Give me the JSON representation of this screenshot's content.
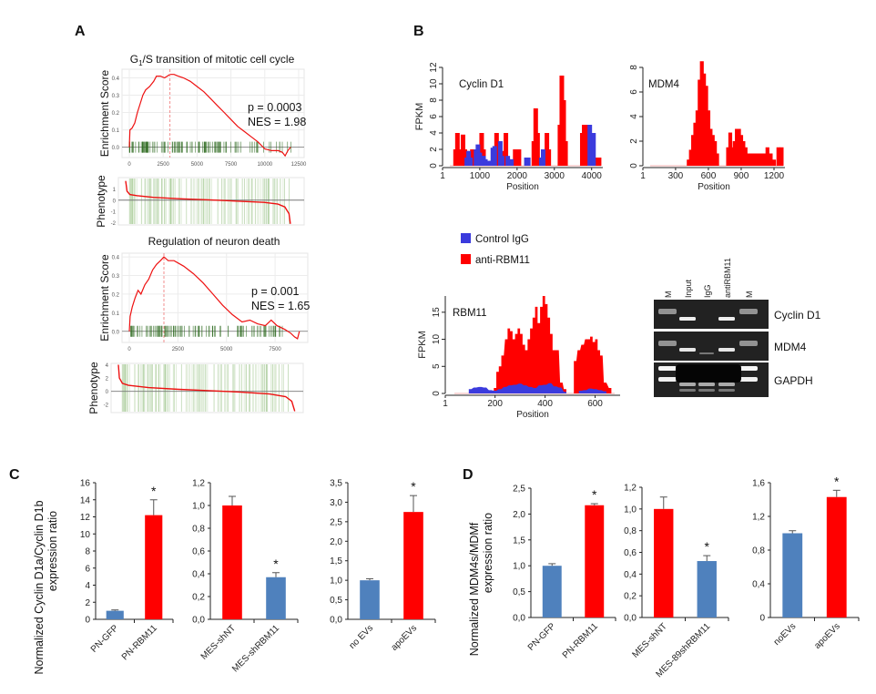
{
  "panel_letters": {
    "A": "A",
    "B": "B",
    "C": "C",
    "D": "D"
  },
  "colors": {
    "gsea_line": "#ee1111",
    "gsea_hits": "#2d6a1f",
    "gsea_hit_bg": "#b8d4a8",
    "control_igg": "#3b3bdd",
    "anti_rbm11": "#ff0000",
    "bar_blue": "#4f81bd",
    "bar_red": "#ff0000",
    "axis": "#222222",
    "gel_bg": "#1a1a1a",
    "gel_band": "#e8e8e8"
  },
  "chart_data": [
    {
      "id": "A1-es",
      "type": "line",
      "title": "G1/S transition of mitotic cell cycle",
      "title_main": "G",
      "title_sub": "1",
      "title_rest": "/S transition of mitotic cell cycle",
      "ylabel": "Enrichment Score",
      "xlim": [
        0,
        12500
      ],
      "ylim": [
        -0.06,
        0.45
      ],
      "xticks": [
        "0",
        "2500",
        "5000",
        "7500",
        "10000",
        "12500"
      ],
      "xtick_values": [
        0,
        2500,
        5000,
        7500,
        10000,
        12500
      ],
      "yticks": [
        "0.0",
        "0.1",
        "0.2",
        "0.3",
        "0.4"
      ],
      "ytick_values": [
        0.0,
        0.1,
        0.2,
        0.3,
        0.4
      ],
      "annotations": [
        "p = 0.0003",
        "NES = 1.98"
      ],
      "peak_x": 3000,
      "x": [
        0,
        50,
        200,
        400,
        600,
        800,
        1000,
        1200,
        1500,
        1800,
        2000,
        2300,
        2600,
        2800,
        3000,
        3300,
        3600,
        4000,
        4500,
        5000,
        5500,
        6000,
        6500,
        7000,
        7500,
        8000,
        8500,
        9000,
        9500,
        10000,
        10500,
        11000,
        11300,
        11500,
        11700,
        11900
      ],
      "y": [
        0.0,
        0.1,
        0.11,
        0.14,
        0.2,
        0.25,
        0.3,
        0.33,
        0.35,
        0.38,
        0.41,
        0.41,
        0.4,
        0.41,
        0.42,
        0.42,
        0.41,
        0.4,
        0.38,
        0.35,
        0.32,
        0.28,
        0.24,
        0.2,
        0.16,
        0.12,
        0.09,
        0.06,
        0.03,
        -0.01,
        -0.02,
        -0.02,
        -0.03,
        -0.05,
        -0.02,
        0.0
      ],
      "hits_n": 120,
      "hits_max": 12000
    },
    {
      "id": "A1-pheno",
      "type": "line",
      "ylabel": "Phenotype",
      "ylim": [
        -2.2,
        2
      ],
      "yticks": [
        "1",
        "0",
        "-1",
        "-2"
      ],
      "ytick_values": [
        1,
        0,
        -1,
        -2
      ],
      "xlim": [
        0,
        12500
      ],
      "x": [
        0,
        100,
        300,
        800,
        2000,
        4000,
        6000,
        8000,
        10000,
        11000,
        11500,
        11800,
        11900
      ],
      "y": [
        1.7,
        0.8,
        0.5,
        0.4,
        0.25,
        0.12,
        0.03,
        -0.08,
        -0.2,
        -0.35,
        -0.6,
        -1.2,
        -2.1
      ]
    },
    {
      "id": "A2-es",
      "type": "line",
      "title": "Regulation of neuron death",
      "ylabel": "Enrichment Score",
      "xlim": [
        0,
        8900
      ],
      "ylim": [
        -0.06,
        0.42
      ],
      "xticks": [
        "0",
        "2500",
        "5000",
        "7500"
      ],
      "xtick_values": [
        0,
        2500,
        5000,
        7500
      ],
      "yticks": [
        "0.0",
        "0.1",
        "0.2",
        "0.3",
        "0.4"
      ],
      "ytick_values": [
        0.0,
        0.1,
        0.2,
        0.3,
        0.4
      ],
      "annotations": [
        "p = 0.001",
        "NES = 1.65"
      ],
      "peak_x": 1780,
      "x": [
        0,
        40,
        150,
        300,
        450,
        600,
        800,
        1000,
        1200,
        1400,
        1600,
        1780,
        2000,
        2300,
        2800,
        3300,
        3800,
        4300,
        4800,
        5300,
        5800,
        6200,
        6600,
        7000,
        7300,
        7600,
        8000,
        8300,
        8500,
        8650,
        8750
      ],
      "y": [
        0.0,
        0.08,
        0.13,
        0.18,
        0.22,
        0.2,
        0.25,
        0.28,
        0.33,
        0.36,
        0.38,
        0.4,
        0.38,
        0.38,
        0.35,
        0.31,
        0.26,
        0.2,
        0.14,
        0.09,
        0.05,
        0.06,
        0.04,
        0.03,
        0.06,
        0.03,
        0.01,
        -0.01,
        -0.03,
        -0.04,
        0.0
      ],
      "hits_n": 110,
      "hits_max": 8000
    },
    {
      "id": "A2-pheno",
      "type": "line",
      "ylabel": "Phenotype",
      "ylim": [
        -3.2,
        4.2
      ],
      "yticks": [
        "4",
        "2",
        "0",
        "-2"
      ],
      "ytick_values": [
        4,
        2,
        0,
        -2
      ],
      "xlim": [
        0,
        8900
      ],
      "x": [
        0,
        50,
        200,
        500,
        1500,
        3000,
        4500,
        6000,
        7500,
        8300,
        8600,
        8750
      ],
      "y": [
        4.0,
        2.0,
        1.2,
        0.9,
        0.55,
        0.3,
        0.1,
        -0.1,
        -0.4,
        -0.8,
        -1.5,
        -3.0
      ]
    },
    {
      "id": "B-cyclinD1",
      "type": "bar",
      "title": "Cyclin D1",
      "ylabel": "FPKM",
      "xlabel": "Position",
      "xlim": [
        1,
        4300
      ],
      "ylim": [
        0,
        12
      ],
      "xticks": [
        "1",
        "1000",
        "2000",
        "3000",
        "4000"
      ],
      "xtick_values": [
        1,
        1000,
        2000,
        3000,
        4000
      ],
      "yticks": [
        "0",
        "2",
        "4",
        "6",
        "8",
        "10",
        "12"
      ],
      "ytick_values": [
        0,
        2,
        4,
        6,
        8,
        10,
        12
      ],
      "series": [
        {
          "name": "anti-RBM11",
          "x": [
            350,
            400,
            450,
            500,
            550,
            600,
            650,
            800,
            850,
            1050,
            1100,
            1450,
            1500,
            1650,
            1700,
            1950,
            2000,
            2050,
            2450,
            2500,
            2550,
            2600,
            2800,
            2850,
            3150,
            3200,
            3250,
            3300,
            3750,
            3800,
            3850,
            4150,
            4200
          ],
          "values": [
            2,
            4,
            2,
            2,
            3.8,
            2,
            1.8,
            2,
            1.8,
            4,
            2,
            4,
            2,
            1.8,
            4,
            2,
            2,
            2,
            3,
            7,
            4,
            1,
            4,
            2,
            5,
            11,
            8,
            3,
            4,
            5,
            5,
            1,
            1
          ]
        },
        {
          "name": "Control IgG",
          "x": [
            650,
            700,
            750,
            900,
            950,
            1000,
            1050,
            1100,
            1150,
            1250,
            1300,
            1350,
            1400,
            1550,
            1600,
            1750,
            1850,
            2250,
            2300,
            2650,
            2700,
            3950,
            4000,
            4050
          ],
          "values": [
            1,
            1.8,
            1,
            2,
            2.6,
            1.6,
            1.2,
            1.2,
            0.8,
            0.6,
            0.6,
            2.2,
            2.4,
            3,
            1.2,
            1.2,
            0.8,
            1,
            1,
            1,
            2,
            5,
            3,
            4
          ]
        }
      ]
    },
    {
      "id": "B-mdm4",
      "type": "bar",
      "title": "MDM4",
      "ylabel": "",
      "xlabel": "Position",
      "xlim": [
        1,
        1300
      ],
      "ylim": [
        0,
        8
      ],
      "xticks": [
        "1",
        "300",
        "600",
        "900",
        "1200"
      ],
      "xtick_values": [
        1,
        300,
        600,
        900,
        1200
      ],
      "yticks": [
        "0",
        "2",
        "4",
        "6",
        "8"
      ],
      "ytick_values": [
        0,
        2,
        4,
        6,
        8
      ],
      "series": [
        {
          "name": "anti-RBM11",
          "x": [
            420,
            440,
            460,
            480,
            500,
            520,
            540,
            560,
            580,
            600,
            620,
            640,
            660,
            680,
            780,
            800,
            820,
            840,
            860,
            880,
            900,
            920,
            940,
            960,
            990,
            1020,
            1050,
            1080,
            1110,
            1140,
            1170,
            1200,
            1240,
            1270
          ],
          "values": [
            0.5,
            1.3,
            2.5,
            3.5,
            4.5,
            7,
            8.5,
            7.5,
            6.5,
            4.5,
            3,
            2.5,
            2,
            1,
            1.5,
            2.7,
            1.5,
            2,
            3,
            3,
            2.5,
            2,
            1.5,
            1,
            1,
            1,
            1,
            1,
            1,
            1.5,
            1,
            0.5,
            1.5,
            1.5
          ]
        }
      ]
    },
    {
      "id": "B-rbm11",
      "type": "area",
      "title": "RBM11",
      "ylabel": "FPKM",
      "xlabel": "Position",
      "xlim": [
        1,
        700
      ],
      "ylim": [
        0,
        18
      ],
      "xticks": [
        "1",
        "200",
        "400",
        "600"
      ],
      "xtick_values": [
        1,
        200,
        400,
        600
      ],
      "yticks": [
        "0",
        "5",
        "10",
        "15"
      ],
      "ytick_values": [
        0,
        5,
        10,
        15
      ],
      "legend": [
        "Control IgG",
        "anti-RBM11"
      ],
      "legend_position": "top-left",
      "series": [
        {
          "name": "anti-RBM11",
          "x": [
            200,
            210,
            220,
            230,
            245,
            255,
            265,
            275,
            285,
            295,
            305,
            315,
            325,
            335,
            345,
            355,
            365,
            375,
            385,
            395,
            405,
            415,
            425,
            435,
            450,
            465,
            480,
            520,
            535,
            550,
            565,
            575,
            585,
            595,
            605,
            615,
            625,
            640,
            660
          ],
          "values": [
            1,
            4,
            5,
            7,
            10,
            12,
            11.5,
            10,
            11,
            12,
            11,
            9,
            8,
            10,
            12,
            14,
            16,
            13,
            16,
            18,
            16.5,
            14,
            11,
            8,
            8,
            2,
            0.8,
            6,
            8,
            9,
            10,
            10,
            10.5,
            9.5,
            10,
            8,
            7,
            2,
            1
          ]
        },
        {
          "name": "Control IgG",
          "x": [
            100,
            120,
            140,
            160,
            180,
            200,
            220,
            240,
            260,
            280,
            300,
            320,
            340,
            360,
            380,
            400,
            420,
            440,
            460,
            480,
            540,
            560,
            580,
            600,
            620,
            640
          ],
          "values": [
            0.8,
            1.1,
            1.2,
            1.1,
            0.6,
            0.5,
            0.8,
            1.2,
            1.5,
            1.6,
            1.8,
            1.5,
            1.2,
            1.0,
            1.5,
            1.6,
            1.9,
            1.3,
            1.1,
            0.3,
            0.5,
            0.6,
            0.9,
            0.8,
            0.6,
            0.4
          ]
        }
      ]
    },
    {
      "id": "B-gel",
      "type": "table",
      "lanes": [
        "M",
        "Input",
        "IgG",
        "antiRBM11",
        "M"
      ],
      "rows": [
        "Cyclin D1",
        "MDM4",
        "GAPDH"
      ]
    },
    {
      "id": "C1",
      "type": "bar",
      "ylabel": "Normalized Cyclin D1a/Cyclin D1b expression ratio",
      "ylabel_line1": "Normalized Cyclin D1a/Cyclin D1b",
      "ylabel_line2": "expression ratio",
      "categories": [
        "PN-GFP",
        "PN-RBM11"
      ],
      "values": [
        1.0,
        12.2
      ],
      "errors": [
        0.1,
        1.8
      ],
      "significance": [
        "",
        "*"
      ],
      "bar_colors": [
        "blue",
        "red"
      ],
      "ylim": [
        0,
        16
      ],
      "yticks": [
        "0",
        "2",
        "4",
        "6",
        "8",
        "10",
        "12",
        "14",
        "16"
      ],
      "ytick_values": [
        0,
        2,
        4,
        6,
        8,
        10,
        12,
        14,
        16
      ]
    },
    {
      "id": "C2",
      "type": "bar",
      "categories": [
        "MES-shNT",
        "MES-shRBM11"
      ],
      "values": [
        1.0,
        0.37
      ],
      "errors": [
        0.08,
        0.04
      ],
      "significance": [
        "",
        "*"
      ],
      "bar_colors": [
        "red",
        "blue"
      ],
      "ylim": [
        0,
        1.2
      ],
      "yticks": [
        "0,0",
        "0,2",
        "0,4",
        "0,6",
        "0,8",
        "1,0",
        "1,2"
      ],
      "ytick_values": [
        0,
        0.2,
        0.4,
        0.6,
        0.8,
        1.0,
        1.2
      ]
    },
    {
      "id": "C3",
      "type": "bar",
      "categories": [
        "no EVs",
        "apoEVs"
      ],
      "values": [
        1.0,
        2.75
      ],
      "errors": [
        0.04,
        0.42
      ],
      "significance": [
        "",
        "*"
      ],
      "bar_colors": [
        "blue",
        "red"
      ],
      "ylim": [
        0,
        3.5
      ],
      "yticks": [
        "0,0",
        "0,5",
        "1,0",
        "1,5",
        "2,0",
        "2,5",
        "3,0",
        "3,5"
      ],
      "ytick_values": [
        0,
        0.5,
        1.0,
        1.5,
        2.0,
        2.5,
        3.0,
        3.5
      ]
    },
    {
      "id": "D1",
      "type": "bar",
      "ylabel": "Normalized MDM4s/MDMf expression ratio",
      "ylabel_line1": "Normalized MDM4s/MDMf",
      "ylabel_line2": "expression ratio",
      "categories": [
        "PN-GFP",
        "PN-RBM11"
      ],
      "values": [
        1.0,
        2.17
      ],
      "errors": [
        0.04,
        0.03
      ],
      "significance": [
        "",
        "*"
      ],
      "bar_colors": [
        "blue",
        "red"
      ],
      "ylim": [
        0,
        2.5
      ],
      "yticks": [
        "0,0",
        "0,5",
        "1,0",
        "1,5",
        "2,0",
        "2,5"
      ],
      "ytick_values": [
        0,
        0.5,
        1.0,
        1.5,
        2.0,
        2.5
      ]
    },
    {
      "id": "D2",
      "type": "bar",
      "categories": [
        "MES-shNT",
        "MES-89shRBM11"
      ],
      "values": [
        1.0,
        0.52
      ],
      "errors": [
        0.11,
        0.05
      ],
      "significance": [
        "",
        "*"
      ],
      "bar_colors": [
        "red",
        "blue"
      ],
      "ylim": [
        0,
        1.2
      ],
      "yticks": [
        "0,0",
        "0,2",
        "0,4",
        "0,6",
        "0,8",
        "1,0",
        "1,2"
      ],
      "ytick_values": [
        0,
        0.2,
        0.4,
        0.6,
        0.8,
        1.0,
        1.2
      ]
    },
    {
      "id": "D3",
      "type": "bar",
      "categories": [
        "noEVs",
        "apoEVs"
      ],
      "values": [
        1.0,
        1.43
      ],
      "errors": [
        0.03,
        0.08
      ],
      "significance": [
        "",
        "*"
      ],
      "bar_colors": [
        "blue",
        "red"
      ],
      "ylim": [
        0,
        1.6
      ],
      "yticks": [
        "0",
        "0,4",
        "0,8",
        "1,2",
        "1,6"
      ],
      "ytick_values": [
        0,
        0.4,
        0.8,
        1.2,
        1.6
      ]
    }
  ]
}
